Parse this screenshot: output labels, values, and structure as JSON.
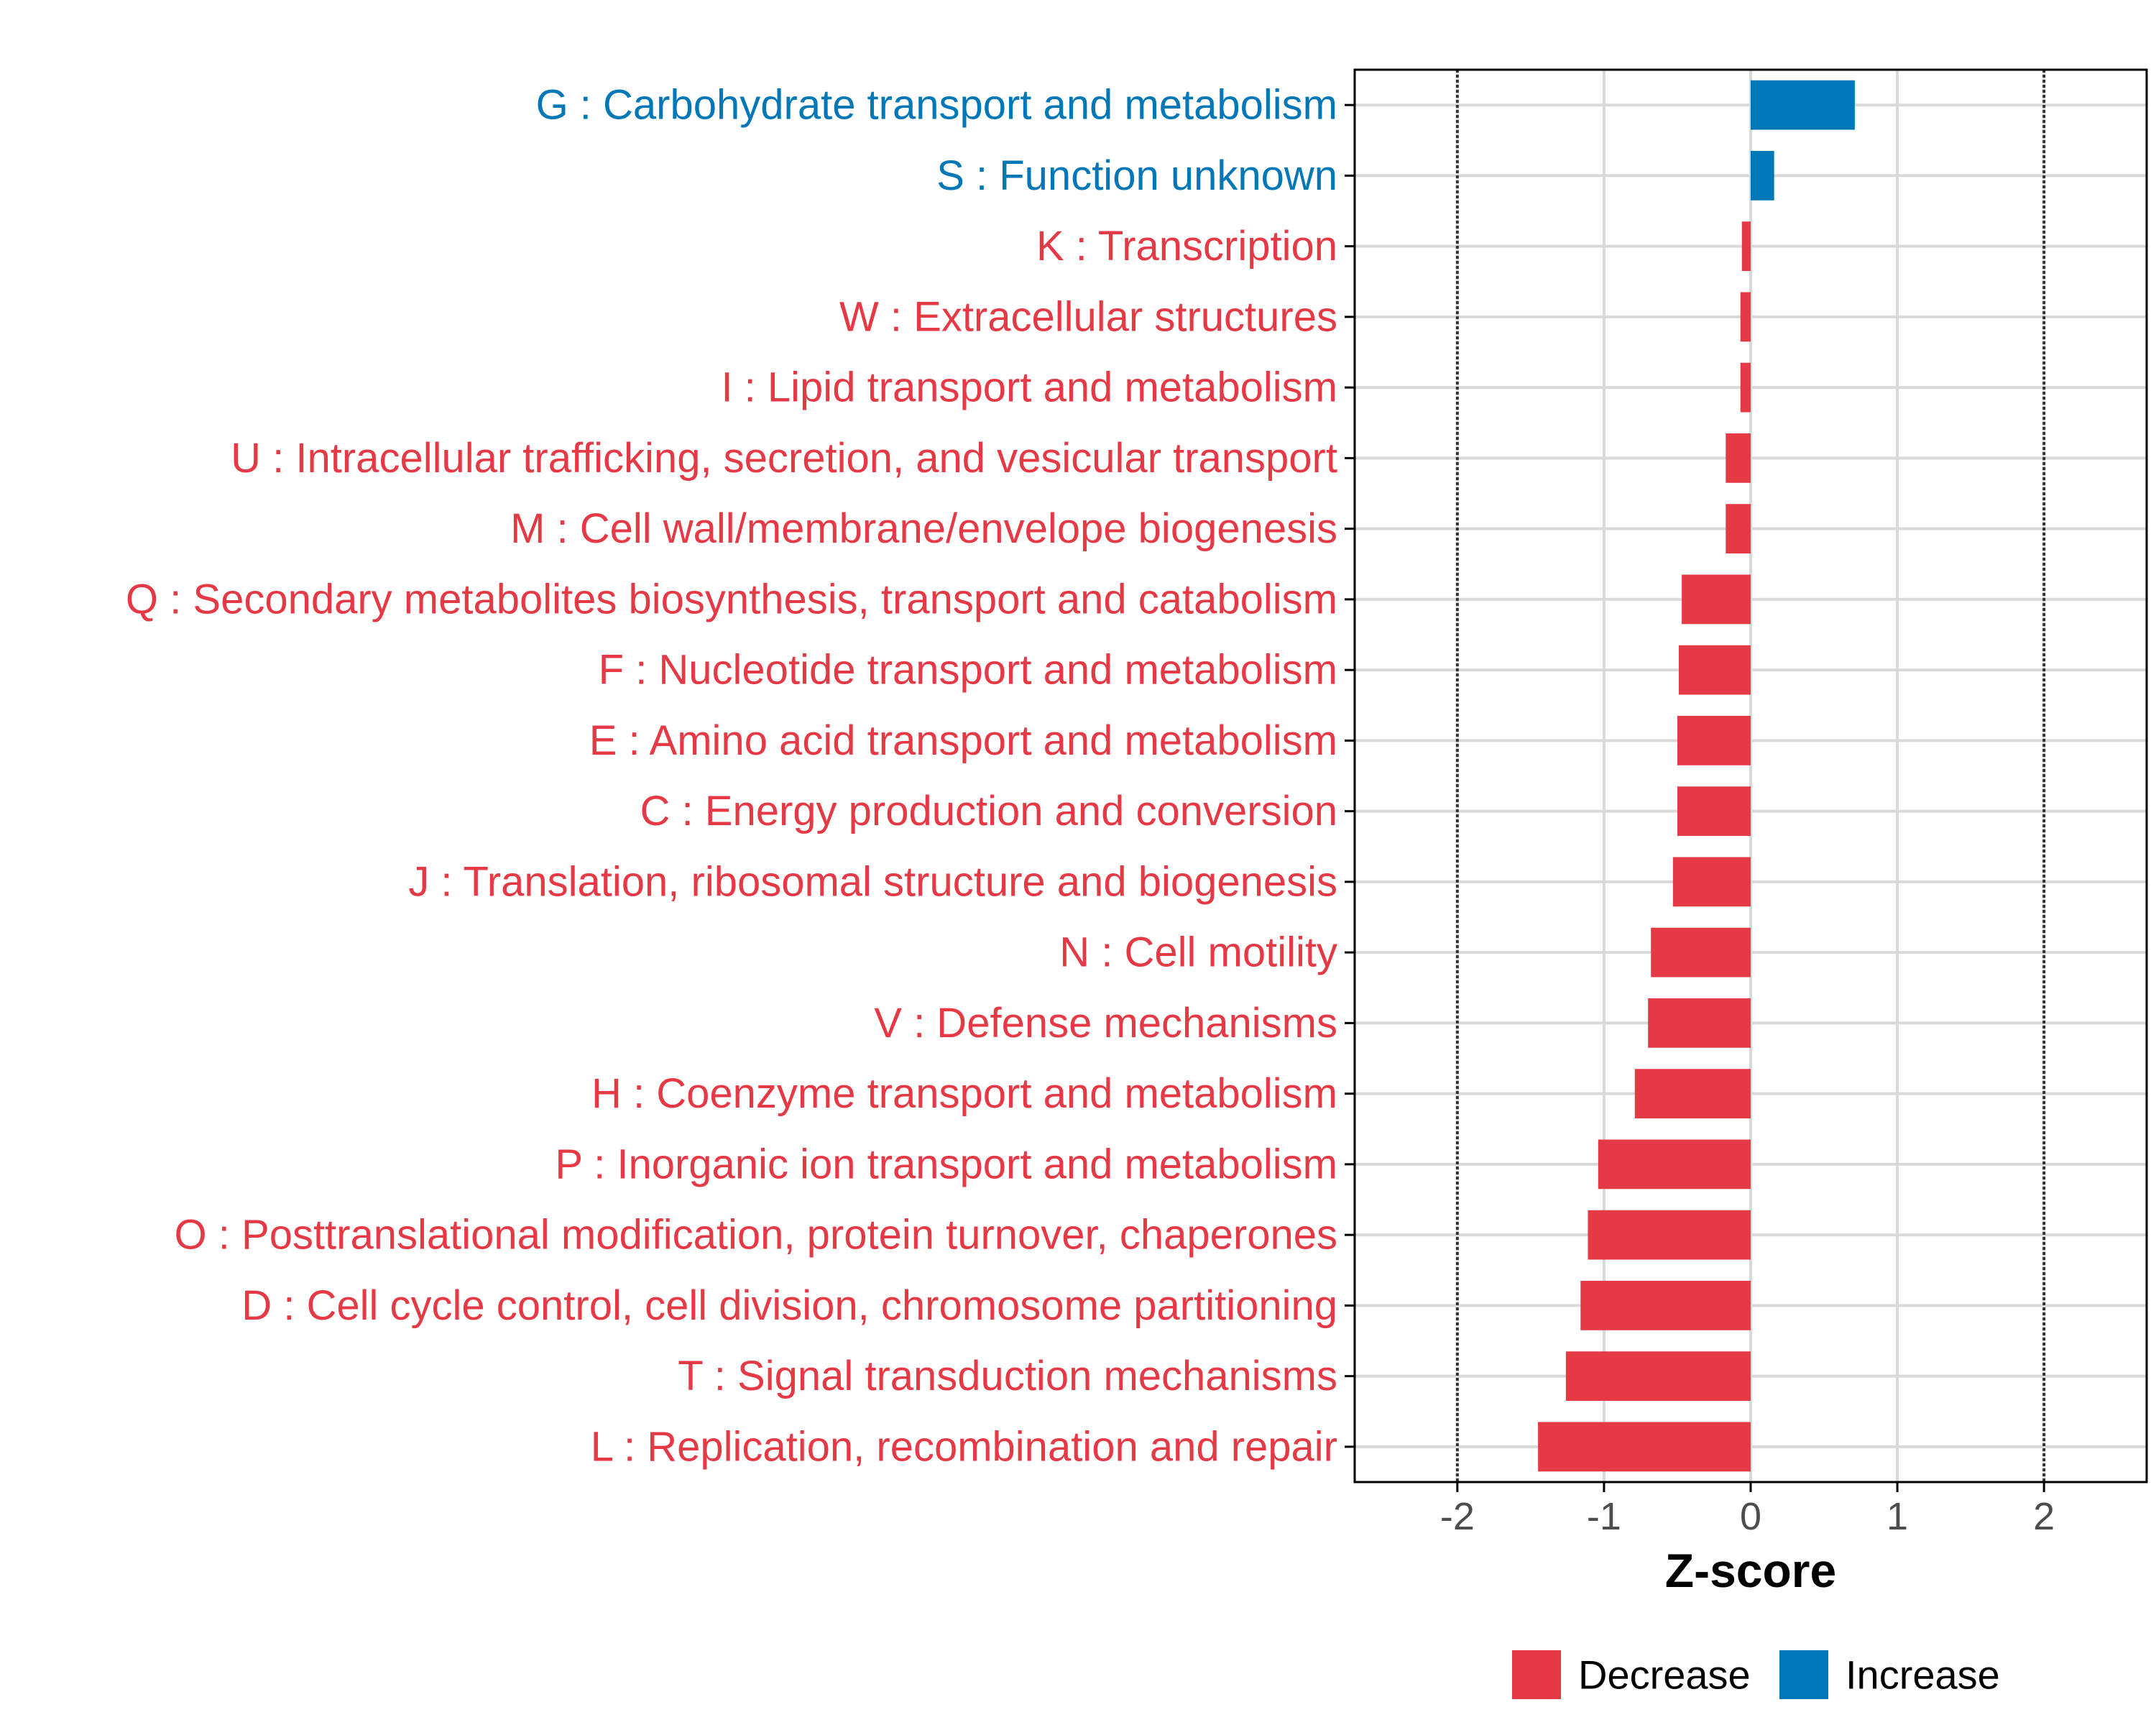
{
  "colors": {
    "decrease": "#E63946",
    "increase": "#0077B6",
    "grid": "#D9D9D9",
    "axis": "#000000",
    "threshold": "#333333",
    "tick_text": "#4D4D4D"
  },
  "chart_data": {
    "type": "bar",
    "orientation": "horizontal",
    "xlabel": "Z-score",
    "xlim": [
      -2.7,
      2.7
    ],
    "xticks": [
      -2,
      -1,
      0,
      1,
      2
    ],
    "xtick_labels": [
      "-2",
      "-1",
      "0",
      "1",
      "2"
    ],
    "threshold_lines": [
      -2,
      2
    ],
    "grid": true,
    "legend_position": "bottom",
    "legend": [
      {
        "label": "Decrease",
        "color_key": "decrease"
      },
      {
        "label": "Increase",
        "color_key": "increase"
      }
    ],
    "categories": [
      "G : Carbohydrate transport and metabolism",
      "S : Function unknown",
      "K : Transcription",
      "W : Extracellular structures",
      "I : Lipid transport and metabolism",
      "U : Intracellular trafficking, secretion, and vesicular transport",
      "M : Cell wall/membrane/envelope biogenesis",
      "Q : Secondary metabolites biosynthesis, transport and catabolism",
      "F : Nucleotide transport and metabolism",
      "E : Amino acid transport and metabolism",
      "C : Energy production and conversion",
      "J : Translation, ribosomal structure and biogenesis",
      "N : Cell motility",
      "V : Defense mechanisms",
      "H : Coenzyme transport and metabolism",
      "P : Inorganic ion transport and metabolism",
      "O : Posttranslational modification, protein turnover, chaperones",
      "D : Cell cycle control, cell division, chromosome partitioning",
      "T : Signal transduction mechanisms",
      "L : Replication, recombination and repair"
    ],
    "values": [
      0.71,
      0.16,
      -0.06,
      -0.07,
      -0.07,
      -0.17,
      -0.17,
      -0.47,
      -0.49,
      -0.5,
      -0.5,
      -0.53,
      -0.68,
      -0.7,
      -0.79,
      -1.04,
      -1.11,
      -1.16,
      -1.26,
      -1.45
    ],
    "groups": [
      "Increase",
      "Increase",
      "Decrease",
      "Decrease",
      "Decrease",
      "Decrease",
      "Decrease",
      "Decrease",
      "Decrease",
      "Decrease",
      "Decrease",
      "Decrease",
      "Decrease",
      "Decrease",
      "Decrease",
      "Decrease",
      "Decrease",
      "Decrease",
      "Decrease",
      "Decrease"
    ]
  }
}
